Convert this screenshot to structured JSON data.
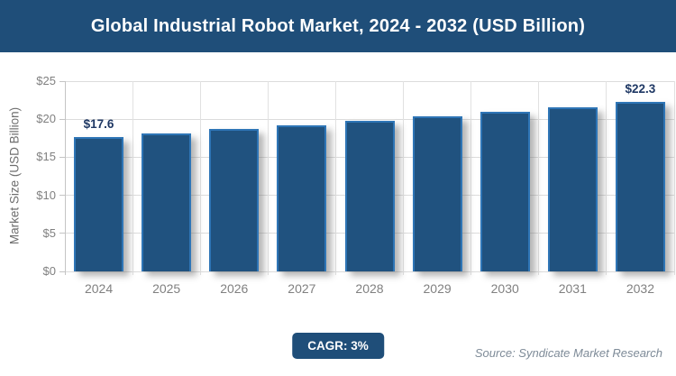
{
  "header": {
    "title": "Global Industrial Robot Market, 2024 - 2032 (USD Billion)",
    "bg_color": "#1F4E79",
    "text_color": "#FFFFFF"
  },
  "chart_data": {
    "type": "bar",
    "title": "Global Industrial Robot Market, 2024 - 2032 (USD Billion)",
    "categories": [
      "2024",
      "2025",
      "2026",
      "2027",
      "2028",
      "2029",
      "2030",
      "2031",
      "2032"
    ],
    "values": [
      17.6,
      18.1,
      18.7,
      19.2,
      19.8,
      20.4,
      21.0,
      21.6,
      22.3
    ],
    "data_labels": [
      "$17.6",
      null,
      null,
      null,
      null,
      null,
      null,
      null,
      "$22.3"
    ],
    "xlabel": "",
    "ylabel": "Market Size (USD Billion)",
    "ylim": [
      0,
      25
    ],
    "yticks": [
      {
        "label": "$0",
        "value": 0
      },
      {
        "label": "$5",
        "value": 5
      },
      {
        "label": "$10",
        "value": 10
      },
      {
        "label": "$15",
        "value": 15
      },
      {
        "label": "$20",
        "value": 20
      },
      {
        "label": "$25",
        "value": 25
      }
    ],
    "grid": true,
    "legend": "none",
    "bar_color": "#20527F",
    "bar_border_color": "#2E75B6",
    "data_label_color": "#1F3864"
  },
  "footer": {
    "cagr_label": "CAGR: 3%",
    "source": "Source: Syndicate Market Research"
  }
}
